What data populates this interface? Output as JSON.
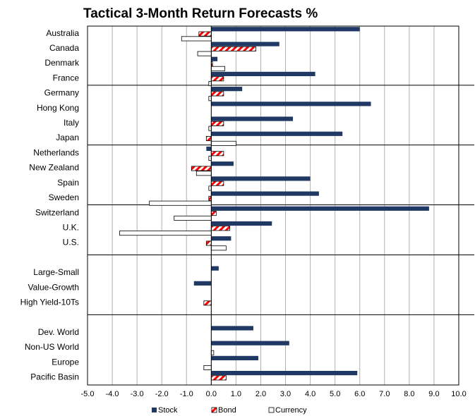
{
  "chart_data": {
    "type": "hbar",
    "title": "Tactical 3-Month Return Forecasts %",
    "categories": [
      "Australia",
      "Canada",
      "Denmark",
      "France",
      "Germany",
      "Hong Kong",
      "Italy",
      "Japan",
      "Netherlands",
      "New Zealand",
      "Spain",
      "Sweden",
      "Switzerland",
      "U.K.",
      "U.S.",
      null,
      "Large-Small",
      "Value-Growth",
      "High Yield-10Ts",
      null,
      "Dev. World",
      "Non-US World",
      "Europe",
      "Pacific Basin"
    ],
    "series": [
      {
        "name": "Stock",
        "color": "#1f3864",
        "values": [
          6.0,
          2.75,
          0.25,
          4.2,
          1.25,
          6.45,
          3.3,
          5.3,
          -0.2,
          0.9,
          4.0,
          4.35,
          8.8,
          2.45,
          0.8,
          null,
          0.3,
          -0.7,
          0,
          null,
          1.7,
          3.15,
          1.9,
          5.9
        ]
      },
      {
        "name": "Bond",
        "color": "#ff0000",
        "hatch": true,
        "values": [
          -0.5,
          1.8,
          0.05,
          0.5,
          0.5,
          0,
          0.5,
          -0.2,
          0.5,
          -0.8,
          0.5,
          -0.1,
          0.2,
          0.75,
          -0.2,
          null,
          0,
          0,
          -0.3,
          null,
          0,
          0,
          0,
          0.6
        ]
      },
      {
        "name": "Currency",
        "color": "#ffffff",
        "values": [
          -1.2,
          -0.55,
          0.55,
          -0.1,
          -0.1,
          0,
          -0.1,
          1.0,
          -0.1,
          -0.6,
          -0.1,
          -2.5,
          -1.5,
          -3.7,
          0.6,
          null,
          0,
          0,
          0,
          null,
          0,
          0.1,
          -0.3,
          0
        ]
      }
    ],
    "xlim": [
      -5,
      10
    ],
    "xticks": [
      {
        "value": -5,
        "label": "-5.0"
      },
      {
        "value": -4,
        "label": "-4.0"
      },
      {
        "value": -3,
        "label": "-3.0"
      },
      {
        "value": -2,
        "label": "-2.0"
      },
      {
        "value": -1,
        "label": "-1.0"
      },
      {
        "value": 0,
        "label": "0.0"
      },
      {
        "value": 1,
        "label": "1.0"
      },
      {
        "value": 2,
        "label": "2.0"
      },
      {
        "value": 3,
        "label": "3.0"
      },
      {
        "value": 4,
        "label": "4.0"
      },
      {
        "value": 5,
        "label": "5.0"
      },
      {
        "value": 6,
        "label": "6.0"
      },
      {
        "value": 7,
        "label": "7.0"
      },
      {
        "value": 8,
        "label": "8.0"
      },
      {
        "value": 9,
        "label": "9.0"
      },
      {
        "value": 10,
        "label": "10.0"
      }
    ],
    "grid": true,
    "legend": "bottom"
  }
}
